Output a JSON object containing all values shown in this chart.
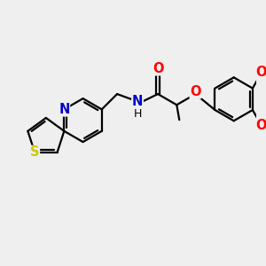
{
  "bg_color": "#efefef",
  "atom_colors": {
    "O": "#ff0000",
    "N": "#0000cd",
    "S": "#cccc00",
    "C": "#000000",
    "H": "#000000"
  },
  "bond_color": "#000000",
  "bond_width": 1.6,
  "font_size": 10.5,
  "fig_width": 3.0,
  "fig_height": 3.0,
  "dpi": 100,
  "xlim": [
    0,
    10
  ],
  "ylim": [
    0,
    10
  ]
}
